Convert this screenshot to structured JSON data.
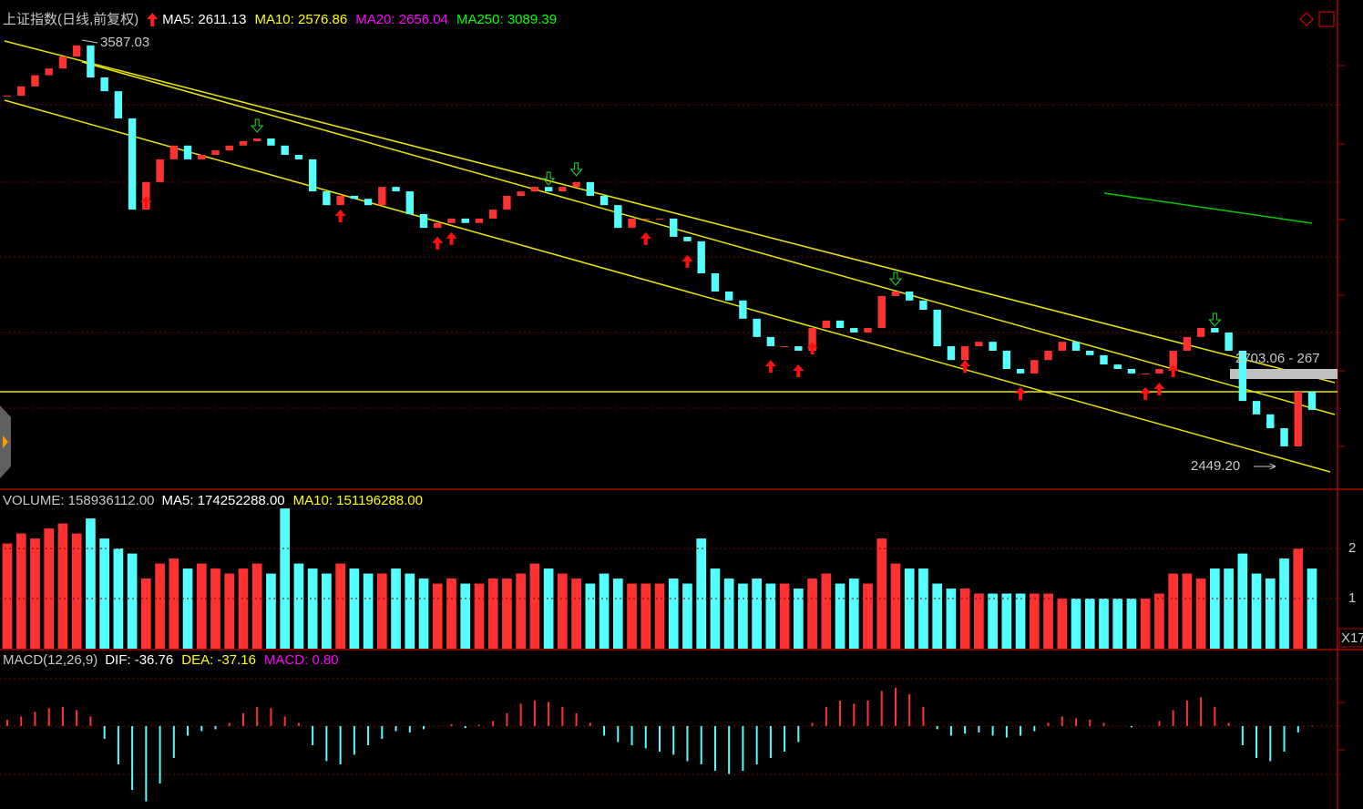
{
  "chart_data": [
    {
      "type": "candlestick",
      "title": "上证指数(日线,前复权)",
      "indicators": [
        {
          "text": "MA5: 2611.13",
          "color": "#ffffff"
        },
        {
          "text": "MA10: 2576.86",
          "color": "#ffff00"
        },
        {
          "text": "MA20: 2656.04",
          "color": "#ff00ff"
        },
        {
          "text": "MA250: 3089.39",
          "color": "#00ff00"
        }
      ],
      "values": [
        3445,
        3470,
        3500,
        3518,
        3550,
        3580,
        3494,
        3457,
        3384,
        3139,
        3213,
        3274,
        3311,
        3274,
        3286,
        3298,
        3311,
        3323,
        3330,
        3311,
        3286,
        3274,
        3188,
        3151,
        3176,
        3168,
        3151,
        3200,
        3188,
        3127,
        3090,
        3103,
        3115,
        3103,
        3115,
        3139,
        3176,
        3188,
        3200,
        3188,
        3200,
        3213,
        3176,
        3151,
        3090,
        3115,
        3115,
        3115,
        3066,
        3054,
        2968,
        2919,
        2895,
        2846,
        2797,
        2772,
        2772,
        2760,
        2821,
        2841,
        2821,
        2809,
        2821,
        2907,
        2919,
        2895,
        2870,
        2772,
        2735,
        2772,
        2784,
        2760,
        2711,
        2699,
        2735,
        2760,
        2784,
        2760,
        2748,
        2723,
        2711,
        2699,
        2699,
        2711,
        2760,
        2797,
        2821,
        2809,
        2760,
        2625,
        2589,
        2552,
        2503,
        2650,
        2601
      ],
      "up_color": "#ff3232",
      "down_color": "#54ffff",
      "ylim": [
        2388,
        3702
      ],
      "high": 3587.03,
      "low": {
        "value": 2449.2,
        "label": "2449.20"
      },
      "range_label": "2703.06 - 267"
    },
    {
      "type": "bar",
      "title": "VOLUME: 158936112.00",
      "indicators": [
        {
          "text": "MA5: 174252288.00",
          "color": "#ffffff"
        },
        {
          "text": "MA10: 151196288.00",
          "color": "#ffff00"
        }
      ],
      "values": [
        2.1,
        2.3,
        2.2,
        2.4,
        2.5,
        2.3,
        2.6,
        2.2,
        2.0,
        1.9,
        1.4,
        1.7,
        1.8,
        1.6,
        1.7,
        1.6,
        1.5,
        1.6,
        1.7,
        1.5,
        2.8,
        1.7,
        1.6,
        1.5,
        1.7,
        1.6,
        1.5,
        1.5,
        1.6,
        1.5,
        1.4,
        1.3,
        1.4,
        1.3,
        1.3,
        1.4,
        1.4,
        1.5,
        1.7,
        1.6,
        1.5,
        1.4,
        1.3,
        1.5,
        1.4,
        1.3,
        1.3,
        1.3,
        1.4,
        1.3,
        2.2,
        1.6,
        1.4,
        1.3,
        1.4,
        1.3,
        1.3,
        1.2,
        1.4,
        1.5,
        1.3,
        1.4,
        1.3,
        2.2,
        1.7,
        1.6,
        1.6,
        1.3,
        1.2,
        1.2,
        1.1,
        1.1,
        1.1,
        1.1,
        1.1,
        1.1,
        1.0,
        1.0,
        1.0,
        1.0,
        1.0,
        1.0,
        1.0,
        1.1,
        1.5,
        1.5,
        1.4,
        1.6,
        1.6,
        1.9,
        1.5,
        1.4,
        1.8,
        2.0,
        1.6
      ],
      "ylim": [
        0,
        3.13
      ],
      "yticks": [
        1,
        2
      ],
      "unit_label": "X17"
    },
    {
      "type": "macd",
      "title": "MACD(12,26,9)",
      "indicators": [
        {
          "text": "DIF: -36.76",
          "color": "#ffffff"
        },
        {
          "text": "DEA: -37.16",
          "color": "#ffff00"
        },
        {
          "text": "MACD: 0.80",
          "color": "#ff00ff"
        }
      ],
      "values": [
        10,
        15,
        22,
        28,
        30,
        25,
        15,
        -20,
        -60,
        -100,
        -118,
        -90,
        -50,
        -15,
        -8,
        -5,
        5,
        20,
        30,
        28,
        15,
        5,
        -30,
        -55,
        -60,
        -45,
        -30,
        -20,
        -8,
        -10,
        -5,
        0,
        3,
        -3,
        2,
        8,
        20,
        35,
        40,
        38,
        30,
        20,
        5,
        -15,
        -25,
        -30,
        -35,
        -40,
        -45,
        -55,
        -60,
        -70,
        -75,
        -70,
        -60,
        -50,
        -40,
        -25,
        5,
        30,
        40,
        35,
        40,
        55,
        60,
        50,
        30,
        -5,
        -15,
        -12,
        -10,
        -15,
        -18,
        -15,
        -8,
        5,
        15,
        12,
        10,
        5,
        0,
        -2,
        0,
        8,
        25,
        40,
        45,
        30,
        5,
        -30,
        -50,
        -55,
        -40,
        -10,
        0.8
      ],
      "ylim": [
        -130,
        117
      ]
    }
  ]
}
